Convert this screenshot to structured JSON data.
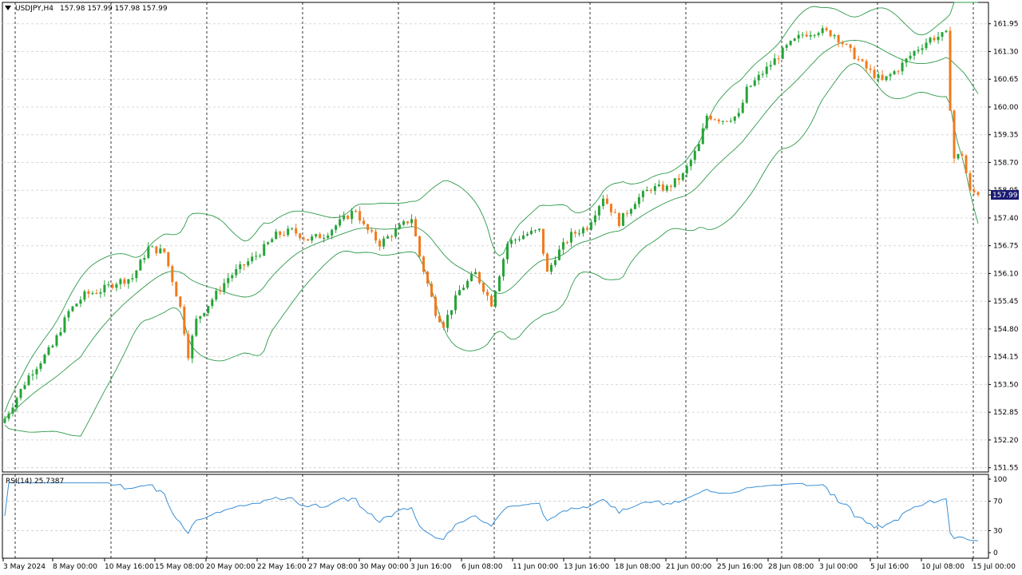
{
  "header": {
    "menu_icon": "triangle-down-icon",
    "symbol": "USDJPY,H4",
    "ohlc": "157.98 157.99 157.98 157.99"
  },
  "indicator": {
    "label": "RSI(14) 25.7387"
  },
  "colors": {
    "up": "#26a338",
    "down": "#f07a1f",
    "bands": "#2e9a4a",
    "rsi": "#3a8fd6",
    "price_tag_bg": "#1a1a72"
  },
  "price_tag": "157.99",
  "chart_data": {
    "type": "candlestick",
    "price_axis": {
      "labels": [
        "161.95",
        "161.30",
        "160.65",
        "160.00",
        "159.35",
        "158.70",
        "158.05",
        "157.40",
        "156.75",
        "156.10",
        "155.45",
        "154.80",
        "154.15",
        "153.50",
        "152.85",
        "152.20",
        "151.55"
      ],
      "ylim": [
        151.45,
        162.45
      ]
    },
    "rsi_axis": {
      "labels": [
        "100",
        "70",
        "30",
        "0"
      ],
      "values": [
        100,
        70,
        30,
        0
      ],
      "levels": [
        70,
        30
      ]
    },
    "time_labels": [
      "3 May 2024",
      "8 May 00:00",
      "10 May 16:00",
      "15 May 08:00",
      "20 May 00:00",
      "22 May 16:00",
      "27 May 08:00",
      "30 May 00:00",
      "3 Jun 16:00",
      "6 Jun 08:00",
      "11 Jun 00:00",
      "13 Jun 16:00",
      "18 Jun 08:00",
      "21 Jun 00:00",
      "25 Jun 16:00",
      "28 Jun 08:00",
      "3 Jul 00:00",
      "5 Jul 16:00",
      "10 Jul 08:00",
      "15 Jul 00:00"
    ],
    "close_series": [
      [
        0,
        152.7
      ],
      [
        6,
        153.7
      ],
      [
        12,
        154.4
      ],
      [
        16,
        155.2
      ],
      [
        20,
        155.6
      ],
      [
        24,
        155.7
      ],
      [
        28,
        155.9
      ],
      [
        32,
        156.0
      ],
      [
        36,
        156.7
      ],
      [
        40,
        156.6
      ],
      [
        44,
        155.3
      ],
      [
        46,
        154.2
      ],
      [
        48,
        155.0
      ],
      [
        52,
        155.5
      ],
      [
        56,
        156.0
      ],
      [
        60,
        156.3
      ],
      [
        64,
        156.6
      ],
      [
        68,
        157.0
      ],
      [
        72,
        157.1
      ],
      [
        76,
        156.9
      ],
      [
        80,
        157.0
      ],
      [
        84,
        157.3
      ],
      [
        88,
        157.6
      ],
      [
        90,
        157.2
      ],
      [
        94,
        156.8
      ],
      [
        98,
        157.1
      ],
      [
        102,
        157.4
      ],
      [
        104,
        156.5
      ],
      [
        108,
        155.2
      ],
      [
        110,
        154.9
      ],
      [
        114,
        155.7
      ],
      [
        118,
        156.1
      ],
      [
        122,
        155.4
      ],
      [
        126,
        156.8
      ],
      [
        130,
        157.0
      ],
      [
        134,
        157.1
      ],
      [
        136,
        156.1
      ],
      [
        138,
        156.5
      ],
      [
        142,
        157.0
      ],
      [
        146,
        157.2
      ],
      [
        150,
        157.9
      ],
      [
        154,
        157.3
      ],
      [
        158,
        157.8
      ],
      [
        162,
        158.1
      ],
      [
        166,
        158.1
      ],
      [
        170,
        158.4
      ],
      [
        174,
        159.1
      ],
      [
        176,
        159.8
      ],
      [
        180,
        159.7
      ],
      [
        184,
        159.8
      ],
      [
        186,
        160.4
      ],
      [
        190,
        160.8
      ],
      [
        196,
        161.4
      ],
      [
        200,
        161.7
      ],
      [
        204,
        161.8
      ],
      [
        208,
        161.7
      ],
      [
        212,
        161.3
      ],
      [
        216,
        160.9
      ],
      [
        220,
        160.6
      ],
      [
        224,
        160.9
      ],
      [
        228,
        161.3
      ],
      [
        232,
        161.6
      ],
      [
        236,
        161.7
      ],
      [
        237,
        160.0
      ],
      [
        238,
        158.8
      ],
      [
        240,
        158.9
      ],
      [
        242,
        158.0
      ],
      [
        244,
        157.99
      ]
    ]
  }
}
